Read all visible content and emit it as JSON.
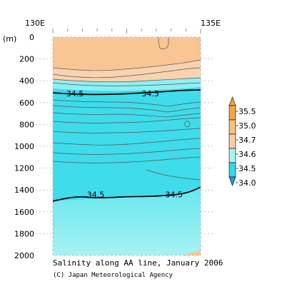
{
  "chart_data": {
    "type": "heatmap",
    "x_tick_labels": [
      "130E",
      "135E"
    ],
    "y_unit_label": "(m)",
    "y_tick_labels": [
      "0",
      "200",
      "400",
      "600",
      "800",
      "1000",
      "1200",
      "1400",
      "1600",
      "1800",
      "2000"
    ],
    "ylim": [
      2000,
      0
    ],
    "contour_labels": [
      {
        "text": "34.5",
        "depth": 515,
        "frac": 0.15
      },
      {
        "text": "34.5",
        "depth": 515,
        "frac": 0.66
      },
      {
        "text": "34.5",
        "depth": 1440,
        "frac": 0.29
      },
      {
        "text": "34.5",
        "depth": 1440,
        "frac": 0.82
      }
    ],
    "legend": {
      "labels": [
        "35.5",
        "35.0",
        "34.7",
        "34.6",
        "34.5",
        "34.0"
      ],
      "colors": [
        "#f4a542",
        "#f8c17c",
        "#f9cda6",
        "#a8f2f4",
        "#33d8ec",
        "#2f8ee6"
      ]
    },
    "caption": "Salinity along AA line, January 2006",
    "credit": "(C) Japan Meteorological Agency"
  }
}
